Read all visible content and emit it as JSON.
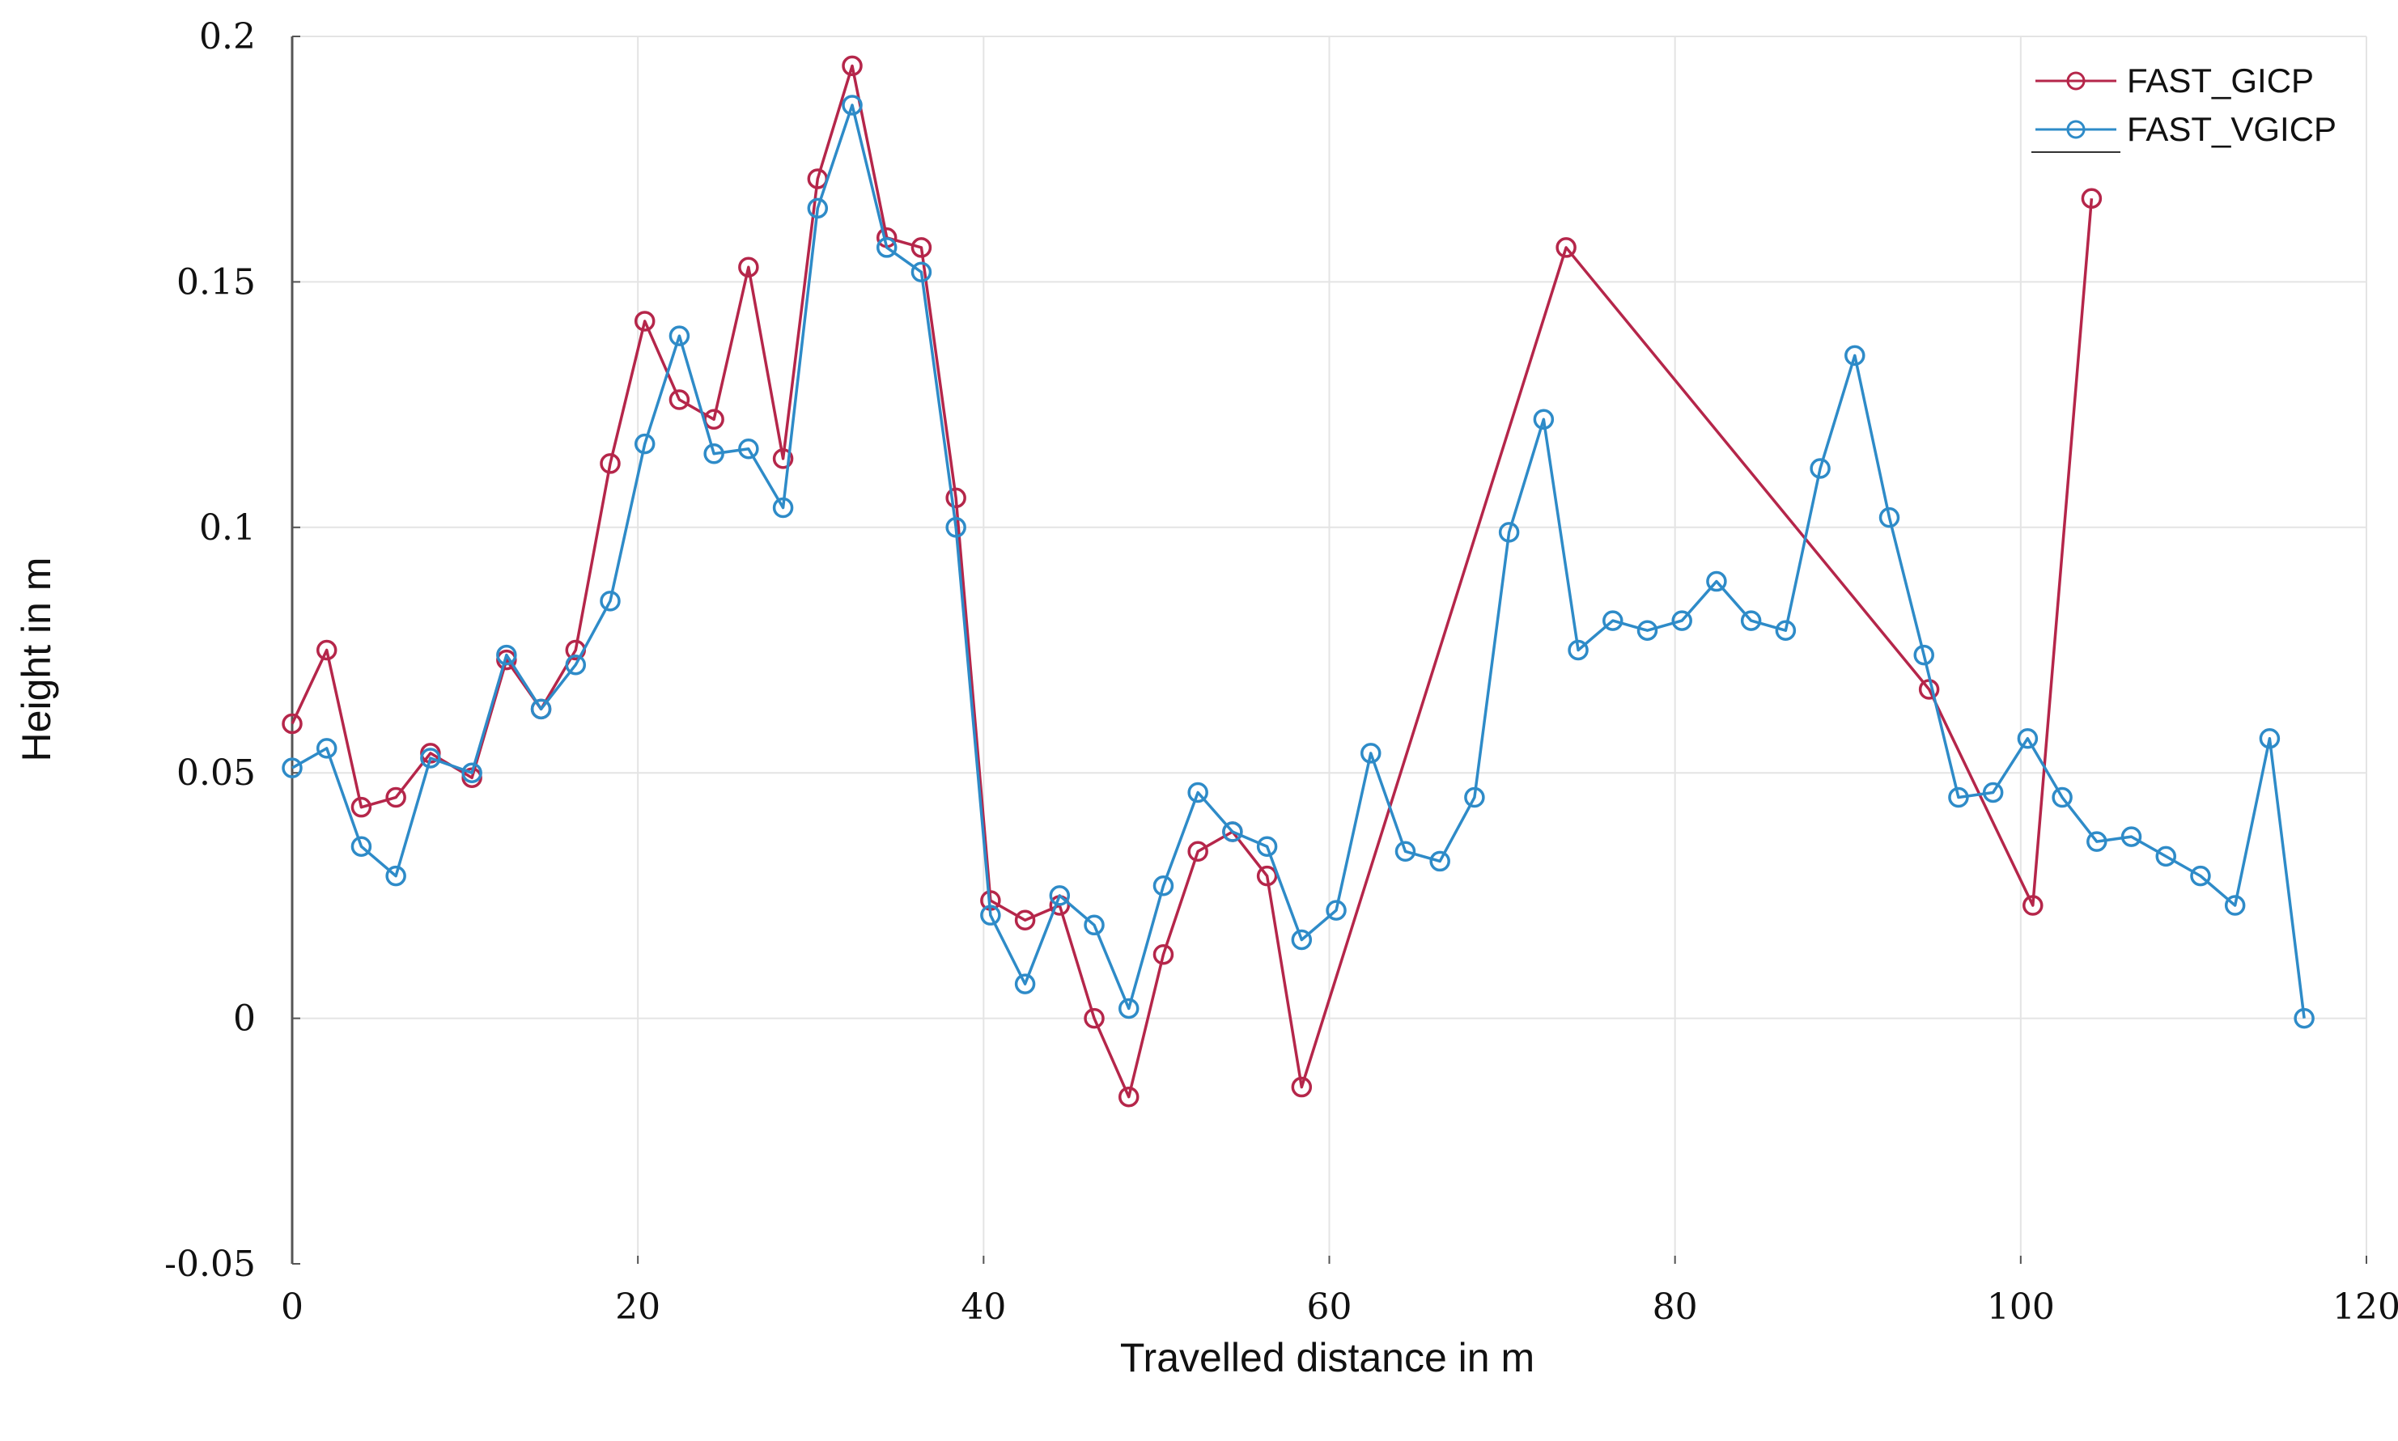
{
  "chart_data": {
    "type": "line",
    "xlabel": "Travelled distance in m",
    "ylabel": "Height in m",
    "xlim": [
      0,
      120
    ],
    "ylim": [
      -0.05,
      0.2
    ],
    "x_ticks": [
      "0",
      "20",
      "40",
      "60",
      "80",
      "100",
      "120"
    ],
    "y_ticks": [
      "-0.05",
      "0",
      "0.05",
      "0.1",
      "0.15",
      "0.2"
    ],
    "grid": true,
    "legend_position": "top-right",
    "marker": "circle",
    "series": [
      {
        "name": "FAST_GICP",
        "color": "#b5264a",
        "x": [
          0,
          2,
          4,
          6,
          8,
          10.4,
          12.4,
          14.4,
          16.4,
          18.4,
          20.4,
          22.4,
          24.4,
          26.4,
          28.4,
          30.4,
          32.4,
          34.4,
          36.4,
          38.4,
          40.4,
          42.4,
          44.4,
          46.4,
          48.4,
          50.4,
          52.4,
          54.4,
          56.4,
          58.4,
          73.7,
          94.7,
          100.7,
          104.1
        ],
        "y": [
          0.06,
          0.075,
          0.043,
          0.045,
          0.054,
          0.049,
          0.073,
          0.063,
          0.075,
          0.113,
          0.142,
          0.126,
          0.122,
          0.153,
          0.114,
          0.171,
          0.194,
          0.159,
          0.157,
          0.106,
          0.024,
          0.02,
          0.023,
          0.0,
          -0.016,
          0.013,
          0.034,
          0.038,
          0.029,
          -0.014,
          0.157,
          0.067,
          0.023,
          0.167
        ]
      },
      {
        "name": "FAST_VGICP",
        "color": "#2e8bc8",
        "x": [
          0,
          2,
          4,
          6,
          8,
          10.4,
          12.4,
          14.4,
          16.4,
          18.4,
          20.4,
          22.4,
          24.4,
          26.4,
          28.4,
          30.4,
          32.4,
          34.4,
          36.4,
          38.4,
          40.4,
          42.4,
          44.4,
          46.4,
          48.4,
          50.4,
          52.4,
          54.4,
          56.4,
          58.4,
          60.4,
          62.4,
          64.4,
          66.4,
          68.4,
          70.4,
          72.4,
          74.4,
          76.4,
          78.4,
          80.4,
          82.4,
          84.4,
          86.4,
          88.4,
          90.4,
          92.4,
          94.4,
          96.4,
          98.4,
          100.4,
          102.4,
          104.4,
          106.4,
          108.4,
          110.4,
          112.4,
          114.4,
          116.4
        ],
        "y": [
          0.051,
          0.055,
          0.035,
          0.029,
          0.053,
          0.05,
          0.074,
          0.063,
          0.072,
          0.085,
          0.117,
          0.139,
          0.115,
          0.116,
          0.104,
          0.165,
          0.186,
          0.157,
          0.152,
          0.1,
          0.021,
          0.007,
          0.025,
          0.019,
          0.002,
          0.027,
          0.046,
          0.038,
          0.035,
          0.016,
          0.022,
          0.054,
          0.034,
          0.032,
          0.045,
          0.099,
          0.122,
          0.075,
          0.081,
          0.079,
          0.081,
          0.089,
          0.081,
          0.079,
          0.112,
          0.135,
          0.102,
          0.074,
          0.045,
          0.046,
          0.057,
          0.045,
          0.036,
          0.037,
          0.033,
          0.029,
          0.023,
          0.057,
          0.0
        ]
      }
    ]
  }
}
